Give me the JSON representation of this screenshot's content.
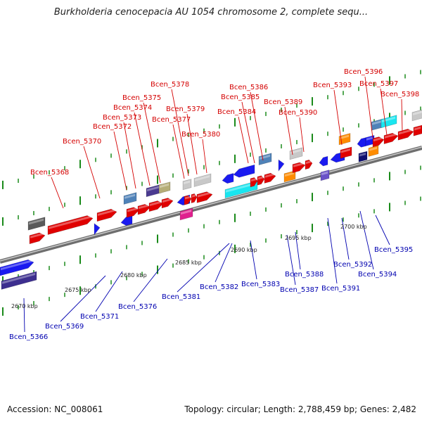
{
  "title": "Burkholderia cenocepacia AU 1054 chromosome 2, complete sequ...",
  "footer": {
    "accession": "Accession: NC_008061",
    "summary": "Topology: circular; Length: 2,788,459 bp; Genes: 2,482"
  },
  "colors": {
    "upper_label": "#d40000",
    "lower_label": "#0000b0",
    "backbone": "#888888",
    "tick": "#1a8a1a"
  },
  "scale_labels": [
    "2670 kbp",
    "2675 kbp",
    "2680 kbp",
    "2685 kbp",
    "2690 kbp",
    "2695 kbp",
    "2700 kbp"
  ],
  "upper_labels": [
    "Bcen_5368",
    "Bcen_5370",
    "Bcen_5372",
    "Bcen_5373",
    "Bcen_5374",
    "Bcen_5375",
    "Bcen_5377",
    "Bcen_5378",
    "Bcen_5379",
    "Bcen_5380",
    "Bcen_5384",
    "Bcen_5385",
    "Bcen_5386",
    "Bcen_5389",
    "Bcen_5390",
    "Bcen_5393",
    "Bcen_5396",
    "Bcen_5397",
    "Bcen_5398"
  ],
  "lower_labels": [
    "Bcen_5366",
    "Bcen_5369",
    "Bcen_5371",
    "Bcen_5376",
    "Bcen_5381",
    "Bcen_5382",
    "Bcen_5383",
    "Bcen_5387",
    "Bcen_5388",
    "Bcen_5391",
    "Bcen_5392",
    "Bcen_5394",
    "Bcen_5395"
  ]
}
